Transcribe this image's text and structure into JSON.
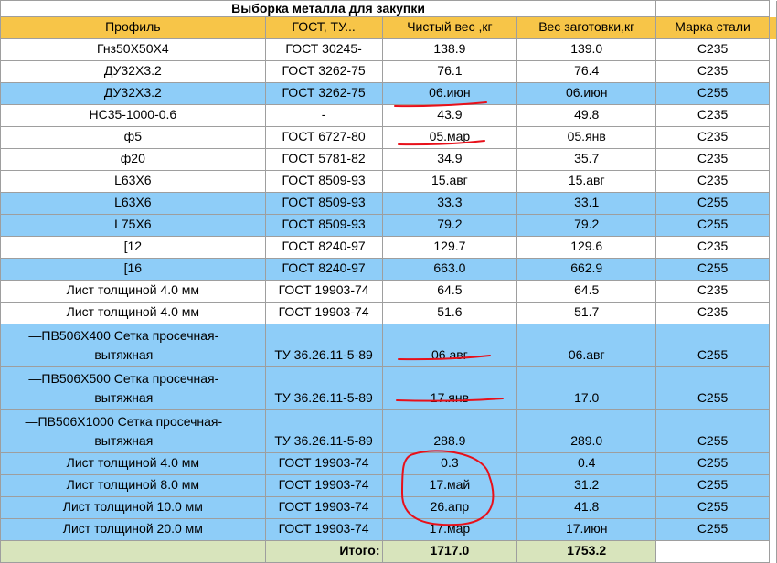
{
  "title": "Выборка металла для закупки",
  "table": {
    "header": [
      "Профиль",
      "ГОСТ, ТУ...",
      "Чистый вес ,кг",
      "Вес заготовки,кг",
      "Марка стали"
    ],
    "rows": [
      [
        "Гнз50X50X4",
        "ГОСТ 30245-",
        "138.9",
        "139.0",
        "C235"
      ],
      [
        "ДУ32X3.2",
        "ГОСТ 3262-75",
        "76.1",
        "76.4",
        "C235"
      ],
      [
        "ДУ32X3.2",
        "ГОСТ 3262-75",
        "06.июн",
        "06.июн",
        "C255"
      ],
      [
        "НС35-1000-0.6",
        "-",
        "43.9",
        "49.8",
        "C235"
      ],
      [
        "ф5",
        "ГОСТ 6727-80",
        "05.мар",
        "05.янв",
        "C235"
      ],
      [
        "ф20",
        "ГОСТ 5781-82",
        "34.9",
        "35.7",
        "C235"
      ],
      [
        "L63X6",
        "ГОСТ 8509-93",
        "15.авг",
        "15.авг",
        "C235"
      ],
      [
        "L63X6",
        "ГОСТ 8509-93",
        "33.3",
        "33.1",
        "C255"
      ],
      [
        "L75X6",
        "ГОСТ 8509-93",
        "79.2",
        "79.2",
        "C255"
      ],
      [
        "[12",
        "ГОСТ 8240-97",
        "129.7",
        "129.6",
        "C235"
      ],
      [
        "[16",
        "ГОСТ 8240-97",
        "663.0",
        "662.9",
        "C255"
      ],
      [
        "Лист толщиной 4.0 мм",
        "ГОСТ 19903-74",
        "64.5",
        "64.5",
        "C235"
      ],
      [
        "Лист толщиной 4.0 мм",
        "ГОСТ 19903-74",
        "51.6",
        "51.7",
        "C235"
      ],
      [
        "—ПВ506X400 Сетка просечная-вытяжная",
        "ТУ 36.26.11-5-89",
        "06.авг",
        "06.авг",
        "C255"
      ],
      [
        "—ПВ506X500 Сетка просечная-вытяжная",
        "ТУ 36.26.11-5-89",
        "17.янв",
        "17.0",
        "C255"
      ],
      [
        "—ПВ506X1000 Сетка просечная-вытяжная",
        "ТУ 36.26.11-5-89",
        "288.9",
        "289.0",
        "C255"
      ],
      [
        "Лист толщиной 4.0 мм",
        "ГОСТ 19903-74",
        "0.3",
        "0.4",
        "C255"
      ],
      [
        "Лист толщиной 8.0 мм",
        "ГОСТ 19903-74",
        "17.май",
        "31.2",
        "C255"
      ],
      [
        "Лист толщиной 10.0 мм",
        "ГОСТ 19903-74",
        "26.апр",
        "41.8",
        "C255"
      ],
      [
        "Лист толщиной 20.0 мм",
        "ГОСТ 19903-74",
        "17.мар",
        "17.июн",
        "C255"
      ]
    ],
    "total": {
      "label": "Итого:",
      "net": "1717.0",
      "gross": "1753.2"
    }
  }
}
